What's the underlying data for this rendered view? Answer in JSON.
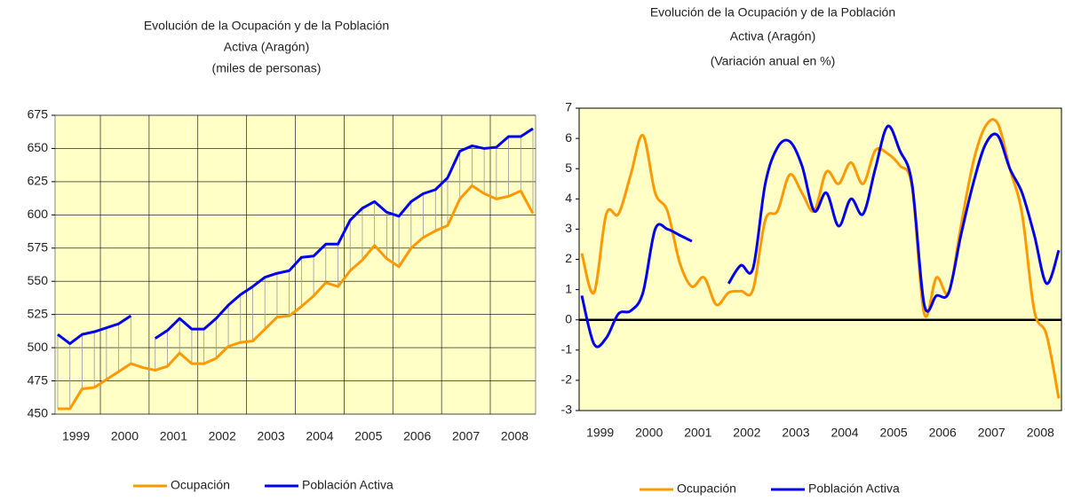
{
  "chart_data": [
    {
      "type": "line",
      "title": [
        "Evolución de la Ocupación y de la Población",
        "Activa (Aragón)",
        "(miles de personas)"
      ],
      "categories": [
        null,
        "1999",
        null,
        null,
        null,
        "2000",
        null,
        null,
        null,
        "2001",
        null,
        null,
        null,
        "2002",
        null,
        null,
        null,
        "2003",
        null,
        null,
        null,
        "2004",
        null,
        null,
        null,
        "2005",
        null,
        null,
        null,
        "2006",
        null,
        null,
        null,
        "2007",
        null,
        null,
        null,
        "2008",
        null,
        null
      ],
      "series": [
        {
          "name": "Ocupación",
          "color": "#ff9900",
          "values": [
            454,
            454,
            469,
            470,
            476,
            482,
            488,
            485,
            483,
            486,
            496,
            488,
            488,
            492,
            501,
            504,
            505,
            514,
            523,
            524,
            531,
            539,
            549,
            546,
            558,
            566,
            577,
            567,
            561,
            575,
            583,
            588,
            592,
            612,
            622,
            616,
            612,
            614,
            618,
            601
          ]
        },
        {
          "name": "Población Activa",
          "color": "#0000ee",
          "values": [
            510,
            503,
            510,
            512,
            515,
            518,
            524,
            null,
            507,
            513,
            522,
            514,
            514,
            522,
            532,
            540,
            546,
            553,
            556,
            558,
            568,
            569,
            578,
            578,
            596,
            605,
            610,
            602,
            599,
            610,
            616,
            619,
            628,
            648,
            652,
            650,
            651,
            659,
            659,
            665
          ]
        }
      ],
      "ylim": [
        450,
        675
      ],
      "yticks": [
        450,
        475,
        500,
        525,
        550,
        575,
        600,
        625,
        650,
        675
      ],
      "grid": true,
      "drop_lines": true,
      "smooth": false,
      "legend": "bottom"
    },
    {
      "type": "line",
      "title": [
        "Evolución de la Ocupación y de la Población",
        "Activa (Aragón)",
        "(Variación anual en %)"
      ],
      "categories": [
        null,
        "1999",
        null,
        null,
        null,
        "2000",
        null,
        null,
        null,
        "2001",
        null,
        null,
        null,
        "2002",
        null,
        null,
        null,
        "2003",
        null,
        null,
        null,
        "2004",
        null,
        null,
        null,
        "2005",
        null,
        null,
        null,
        "2006",
        null,
        null,
        null,
        "2007",
        null,
        null,
        null,
        "2008",
        null,
        null
      ],
      "series": [
        {
          "name": "Ocupación",
          "color": "#ff9900",
          "values": [
            2.2,
            0.9,
            3.5,
            3.5,
            4.8,
            6.1,
            4.2,
            3.6,
            1.9,
            1.1,
            1.4,
            0.5,
            0.9,
            0.95,
            1.0,
            3.3,
            3.6,
            4.8,
            4.2,
            3.6,
            4.9,
            4.5,
            5.2,
            4.5,
            5.6,
            5.5,
            5.1,
            4.4,
            0.2,
            1.4,
            0.9,
            3.1,
            5.2,
            6.4,
            6.5,
            5.0,
            3.5,
            0.3,
            -0.5,
            -2.6
          ]
        },
        {
          "name": "Población Activa",
          "color": "#0000ee",
          "values": [
            0.8,
            -0.8,
            -0.6,
            0.2,
            0.3,
            0.9,
            3.0,
            3.0,
            2.8,
            2.6,
            null,
            null,
            1.2,
            1.8,
            1.7,
            4.5,
            5.7,
            5.9,
            5.1,
            3.6,
            4.2,
            3.1,
            4.0,
            3.5,
            5.0,
            6.4,
            5.6,
            4.5,
            0.5,
            0.8,
            0.9,
            2.8,
            4.5,
            5.8,
            6.1,
            5.0,
            4.2,
            2.8,
            1.2,
            2.3
          ]
        }
      ],
      "ylim": [
        -3,
        7
      ],
      "yticks": [
        -3,
        -2,
        -1,
        0,
        1,
        2,
        3,
        4,
        5,
        6,
        7
      ],
      "grid": false,
      "zero_line": true,
      "drop_lines": false,
      "smooth": true,
      "legend": "bottom"
    }
  ]
}
